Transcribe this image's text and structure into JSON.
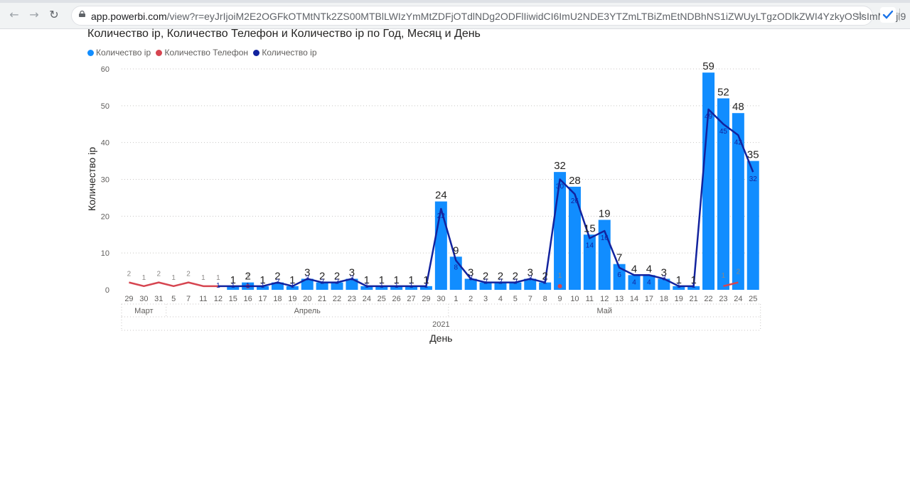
{
  "browser": {
    "url_host": "app.powerbi.com",
    "url_rest": "/view?r=eyJrIjoiM2E2OGFkOTMtNTk2ZS00MTBlLWIzYmMtZDFjOTdlNDg2ODFlIiwidCI6ImU2NDE3YTZmLTBiZmEtNDBhNS1iZWUyLTgzODlkZWI4YzkyOSIsImMiOjl9",
    "back_icon": "←",
    "forward_icon": "→",
    "reload_icon": "↻",
    "star_icon": "☆"
  },
  "chart_data": {
    "type": "bar",
    "title": "Количество ip, Количество Телефон и Количество ip по Год, Месяц и День",
    "xlabel": "День",
    "ylabel": "Количество ip",
    "ylim": [
      0,
      60
    ],
    "yticks": [
      "0",
      "10",
      "20",
      "30",
      "40",
      "50",
      "60"
    ],
    "grid": true,
    "legend_position": "top-left",
    "legend": [
      {
        "label": "Количество ip",
        "color": "#118DFF"
      },
      {
        "label": "Количество Телефон",
        "color": "#D64550"
      },
      {
        "label": "Количество ip",
        "color": "#12239E"
      }
    ],
    "categories": [
      "29",
      "30",
      "31",
      "5",
      "7",
      "11",
      "12",
      "15",
      "16",
      "17",
      "18",
      "19",
      "20",
      "21",
      "22",
      "23",
      "24",
      "25",
      "26",
      "27",
      "29",
      "30",
      "1",
      "2",
      "3",
      "4",
      "5",
      "7",
      "8",
      "9",
      "10",
      "11",
      "12",
      "13",
      "14",
      "17",
      "18",
      "19",
      "21",
      "22",
      "23",
      "24",
      "25"
    ],
    "months": [
      {
        "label": "Март",
        "start": 0,
        "end": 2
      },
      {
        "label": "Апрель",
        "start": 3,
        "end": 21
      },
      {
        "label": "Май",
        "start": 22,
        "end": 42
      }
    ],
    "years": [
      {
        "label": "2021",
        "start": 0,
        "end": 42
      }
    ],
    "series": [
      {
        "name": "Количество ip",
        "kind": "bar",
        "color": "#118DFF",
        "values": [
          null,
          null,
          null,
          null,
          null,
          null,
          null,
          1,
          2,
          1,
          2,
          1,
          3,
          2,
          2,
          3,
          1,
          1,
          1,
          1,
          1,
          24,
          9,
          3,
          2,
          2,
          2,
          3,
          2,
          32,
          28,
          15,
          19,
          7,
          4,
          4,
          3,
          1,
          1,
          59,
          52,
          48,
          35
        ]
      },
      {
        "name": "Количество Телефон",
        "kind": "line",
        "color": "#D64550",
        "values": [
          2,
          1,
          2,
          1,
          2,
          1,
          1,
          null,
          1,
          null,
          null,
          null,
          null,
          null,
          null,
          null,
          null,
          null,
          null,
          null,
          null,
          null,
          null,
          null,
          null,
          null,
          null,
          null,
          null,
          1,
          null,
          null,
          null,
          null,
          null,
          null,
          null,
          null,
          null,
          null,
          1,
          2,
          null
        ]
      },
      {
        "name": "Количество ip",
        "kind": "line",
        "color": "#12239E",
        "values": [
          null,
          null,
          null,
          null,
          null,
          null,
          1,
          1,
          1,
          1,
          2,
          1,
          3,
          2,
          2,
          3,
          1,
          1,
          1,
          1,
          1,
          22,
          8,
          3,
          2,
          2,
          2,
          3,
          2,
          30,
          26,
          14,
          16,
          6,
          4,
          4,
          3,
          1,
          1,
          49,
          45,
          42,
          32
        ]
      }
    ]
  }
}
